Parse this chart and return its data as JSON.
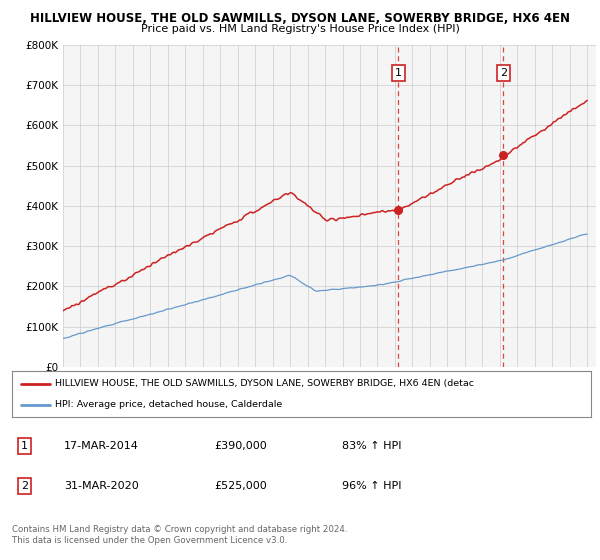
{
  "title_line1": "HILLVIEW HOUSE, THE OLD SAWMILLS, DYSON LANE, SOWERBY BRIDGE, HX6 4EN",
  "title_line2": "Price paid vs. HM Land Registry's House Price Index (HPI)",
  "ylim": [
    0,
    800000
  ],
  "yticks": [
    0,
    100000,
    200000,
    300000,
    400000,
    500000,
    600000,
    700000,
    800000
  ],
  "ytick_labels": [
    "£0",
    "£100K",
    "£200K",
    "£300K",
    "£400K",
    "£500K",
    "£600K",
    "£700K",
    "£800K"
  ],
  "red_line_color": "#cc2222",
  "blue_line_color": "#6699cc",
  "vline_color": "#dd4444",
  "marker1_year": 2014.2,
  "marker1_value": 390000,
  "marker2_year": 2020.2,
  "marker2_value": 525000,
  "legend_line1": "HILLVIEW HOUSE, THE OLD SAWMILLS, DYSON LANE, SOWERBY BRIDGE, HX6 4EN (detac",
  "legend_line2": "HPI: Average price, detached house, Calderdale",
  "table_row1": [
    "1",
    "17-MAR-2014",
    "£390,000",
    "83% ↑ HPI"
  ],
  "table_row2": [
    "2",
    "31-MAR-2020",
    "£525,000",
    "96% ↑ HPI"
  ],
  "footer": "Contains HM Land Registry data © Crown copyright and database right 2024.\nThis data is licensed under the Open Government Licence v3.0.",
  "bg_color": "#ffffff",
  "plot_bg_color": "#f5f5f5",
  "grid_color": "#cccccc"
}
